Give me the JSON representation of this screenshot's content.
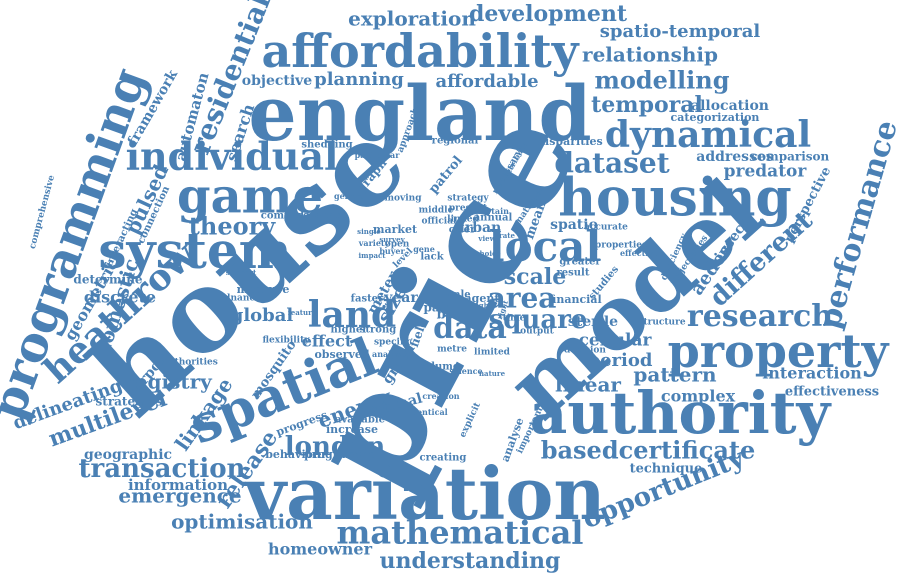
{
  "color": "#4a80b4",
  "words": [
    "price",
    "house",
    "model",
    "england",
    "variation",
    "authority",
    "housing",
    "property",
    "spatial",
    "affordability",
    "game",
    "individual",
    "system",
    "local",
    "programming",
    "mathematical",
    "dynamical",
    "heathrow",
    "performance",
    "land",
    "data",
    "research",
    "dataset",
    "area",
    "square",
    "scale",
    "london",
    "different",
    "opportunity",
    "residential",
    "release",
    "transaction",
    "understanding",
    "theory",
    "development",
    "exploration",
    "basedcertificate",
    "optimisation",
    "modelling",
    "relationship",
    "temporal",
    "spatio-temporal",
    "registry",
    "multilevel",
    "linkage",
    "emergence",
    "pattern",
    "linear",
    "interaction",
    "delineating",
    "pulsed",
    "domestic",
    "geometric",
    "affordable",
    "planning",
    "objective",
    "automaton",
    "framework",
    "search",
    "energy",
    "global",
    "period",
    "cellular",
    "complex",
    "effectiveness",
    "homeowner",
    "information",
    "geographic",
    "airport",
    "strategies",
    "discrete",
    "determine",
    "technique",
    "allocation",
    "categorization",
    "addresses",
    "comparison",
    "predator",
    "perspective",
    "insect",
    "aedes",
    "sterile",
    "mosquito",
    "effect",
    "observed",
    "progress",
    "behaviour",
    "programme",
    "creating",
    "analyse",
    "agent",
    "wale",
    "urban",
    "spatio",
    "accurate",
    "result",
    "financial",
    "studies",
    "greater",
    "output",
    "decision",
    "limited",
    "volume",
    "green",
    "optimal",
    "identical",
    "increase",
    "available",
    "flexibility",
    "higher",
    "strong",
    "specific",
    "field",
    "meter",
    "size",
    "year",
    "best",
    "paid",
    "faster",
    "measure",
    "ordnance",
    "authorities",
    "connection",
    "interacting",
    "comprehensive",
    "shedding",
    "regional",
    "disparities",
    "particular",
    "approach",
    "patrol",
    "graph",
    "moving",
    "general",
    "compare",
    "database",
    "market",
    "open",
    "lack",
    "middle",
    "official",
    "annual",
    "linked",
    "offer",
    "strategy",
    "present",
    "certain",
    "necessary",
    "attribute",
    "mean",
    "national",
    "properties",
    "effective",
    "trajectories",
    "deficiency",
    "structure",
    "creation",
    "explicit",
    "important",
    "gene",
    "level",
    "buyer",
    "survey",
    "support",
    "feature",
    "time",
    "sight",
    "right",
    "metre",
    "analysis",
    "science",
    "nature",
    "variety",
    "single",
    "impact",
    "view",
    "rate",
    "choice"
  ]
}
